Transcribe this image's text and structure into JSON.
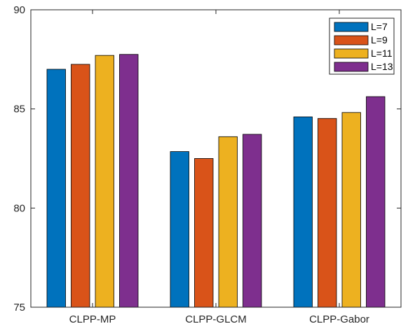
{
  "chart_data": {
    "type": "bar",
    "categories": [
      "CLPP-MP",
      "CLPP-GLCM",
      "CLPP-Gabor"
    ],
    "series": [
      {
        "name": "L=7",
        "color": "#0072BD",
        "values": [
          87.0,
          82.85,
          84.6
        ]
      },
      {
        "name": "L=9",
        "color": "#D95319",
        "values": [
          87.25,
          82.5,
          84.52
        ]
      },
      {
        "name": "L=11",
        "color": "#EDB120",
        "values": [
          87.7,
          83.6,
          84.82
        ]
      },
      {
        "name": "L=13",
        "color": "#7E2F8E",
        "values": [
          87.75,
          83.72,
          85.62
        ]
      }
    ],
    "title": "",
    "xlabel": "",
    "ylabel": "",
    "ylim": [
      75,
      90
    ],
    "yticks": [
      "75",
      "80",
      "85",
      "90"
    ],
    "grid": false,
    "legend_position": "top-right",
    "box": true
  }
}
